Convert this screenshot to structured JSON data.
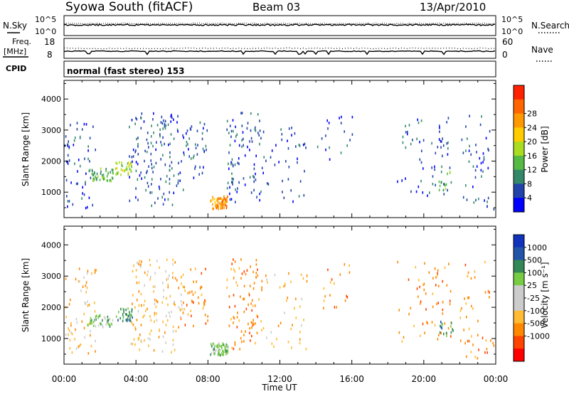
{
  "header": {
    "station": "Syowa South (fitACF)",
    "beam": "Beam 03",
    "date": "13/Apr/2010"
  },
  "top_panels": {
    "nsky_label": "N.Sky",
    "nsearch_label": "N.Search",
    "nsky_ticks": [
      "10^5",
      "10^0"
    ],
    "nsearch_ticks": [
      "10^5",
      "10^0"
    ],
    "freq_label": "Freq.",
    "freq_unit": "[MHz]",
    "freq_ticks": [
      "18",
      "8"
    ],
    "nave_label": "Nave",
    "nave_ticks": [
      "60",
      "0"
    ],
    "cpid_label": "CPID",
    "cpid_text": "normal (fast stereo) 153"
  },
  "colors": {
    "power_scale": [
      "#0000ff",
      "#2244aa",
      "#33886a",
      "#55bb44",
      "#aadd22",
      "#ffcc00",
      "#ff9900",
      "#ff6600",
      "#ff2200"
    ],
    "velocity_scale": [
      "#ff0000",
      "#ff4400",
      "#ff8800",
      "#ffbb33",
      "#cccccc",
      "#cccccc",
      "#77cc44",
      "#338855",
      "#2255aa",
      "#1133bb"
    ]
  },
  "chart_data": [
    {
      "type": "heatmap",
      "name": "power",
      "ylabel": "Slant Range [km]",
      "y_ticks": [
        1000,
        2000,
        3000,
        4000
      ],
      "ylim": [
        180,
        4600
      ],
      "x_ticks": [
        "00:00",
        "04:00",
        "08:00",
        "12:00",
        "16:00",
        "20:00",
        "00:00"
      ],
      "xlim": [
        0,
        24
      ],
      "colorbar_label": "Power [dB]",
      "colorbar_ticks": [
        "4",
        "8",
        "12",
        "16",
        "20",
        "24",
        "28"
      ],
      "clusters": [
        {
          "t": [
            0.0,
            1.8
          ],
          "r": [
            500,
            3300
          ],
          "level": 1,
          "n": 60
        },
        {
          "t": [
            1.2,
            2.7
          ],
          "r": [
            1400,
            1800
          ],
          "level": 3,
          "n": 45
        },
        {
          "t": [
            2.8,
            3.8
          ],
          "r": [
            1600,
            2000
          ],
          "level": 4,
          "n": 35
        },
        {
          "t": [
            3.6,
            6.6
          ],
          "r": [
            600,
            3600
          ],
          "level": 1,
          "n": 140
        },
        {
          "t": [
            6.6,
            8.0
          ],
          "r": [
            1400,
            3300
          ],
          "level": 1,
          "n": 40
        },
        {
          "t": [
            8.1,
            9.1
          ],
          "r": [
            500,
            900
          ],
          "level": 6,
          "n": 70
        },
        {
          "t": [
            9.0,
            11.0
          ],
          "r": [
            700,
            3600
          ],
          "level": 1,
          "n": 90
        },
        {
          "t": [
            11.0,
            13.5
          ],
          "r": [
            700,
            3200
          ],
          "level": 1,
          "n": 40
        },
        {
          "t": [
            14.0,
            16.0
          ],
          "r": [
            2000,
            3500
          ],
          "level": 1,
          "n": 18
        },
        {
          "t": [
            18.5,
            21.5
          ],
          "r": [
            900,
            3500
          ],
          "level": 1,
          "n": 60
        },
        {
          "t": [
            20.8,
            21.6
          ],
          "r": [
            1100,
            1700
          ],
          "level": 3,
          "n": 15
        },
        {
          "t": [
            22.0,
            23.9
          ],
          "r": [
            300,
            3500
          ],
          "level": 1,
          "n": 45
        }
      ]
    },
    {
      "type": "heatmap",
      "name": "velocity",
      "ylabel": "Slant Range [km]",
      "xlabel": "Time UT",
      "y_ticks": [
        1000,
        2000,
        3000,
        4000
      ],
      "ylim": [
        180,
        4600
      ],
      "x_ticks": [
        "00:00",
        "04:00",
        "08:00",
        "12:00",
        "16:00",
        "20:00",
        "00:00"
      ],
      "xlim": [
        0,
        24
      ],
      "colorbar_label": "Velocity [m s⁻¹]",
      "colorbar_ticks": [
        "1000",
        "500",
        "100",
        "25",
        "-25",
        "-100",
        "-500",
        "-1000"
      ],
      "clusters": [
        {
          "t": [
            0.0,
            1.8
          ],
          "r": [
            500,
            3300
          ],
          "level": 3,
          "n": 60
        },
        {
          "t": [
            1.2,
            2.7
          ],
          "r": [
            1400,
            1800
          ],
          "level": 6,
          "n": 45
        },
        {
          "t": [
            2.8,
            3.8
          ],
          "r": [
            1600,
            2000
          ],
          "level": 7,
          "n": 35
        },
        {
          "t": [
            3.6,
            6.6
          ],
          "r": [
            600,
            3600
          ],
          "level": 3,
          "n": 140
        },
        {
          "t": [
            6.6,
            8.0
          ],
          "r": [
            1400,
            3300
          ],
          "level": 2,
          "n": 40
        },
        {
          "t": [
            8.1,
            9.1
          ],
          "r": [
            500,
            900
          ],
          "level": 6,
          "n": 70
        },
        {
          "t": [
            9.0,
            11.0
          ],
          "r": [
            700,
            3600
          ],
          "level": 2,
          "n": 90
        },
        {
          "t": [
            11.0,
            13.5
          ],
          "r": [
            700,
            3200
          ],
          "level": 3,
          "n": 40
        },
        {
          "t": [
            14.0,
            16.0
          ],
          "r": [
            2000,
            3500
          ],
          "level": 2,
          "n": 18
        },
        {
          "t": [
            18.5,
            21.5
          ],
          "r": [
            900,
            3500
          ],
          "level": 2,
          "n": 60
        },
        {
          "t": [
            20.8,
            21.6
          ],
          "r": [
            1100,
            1700
          ],
          "level": 7,
          "n": 15
        },
        {
          "t": [
            22.0,
            23.9
          ],
          "r": [
            300,
            3500
          ],
          "level": 2,
          "n": 45
        }
      ]
    }
  ]
}
